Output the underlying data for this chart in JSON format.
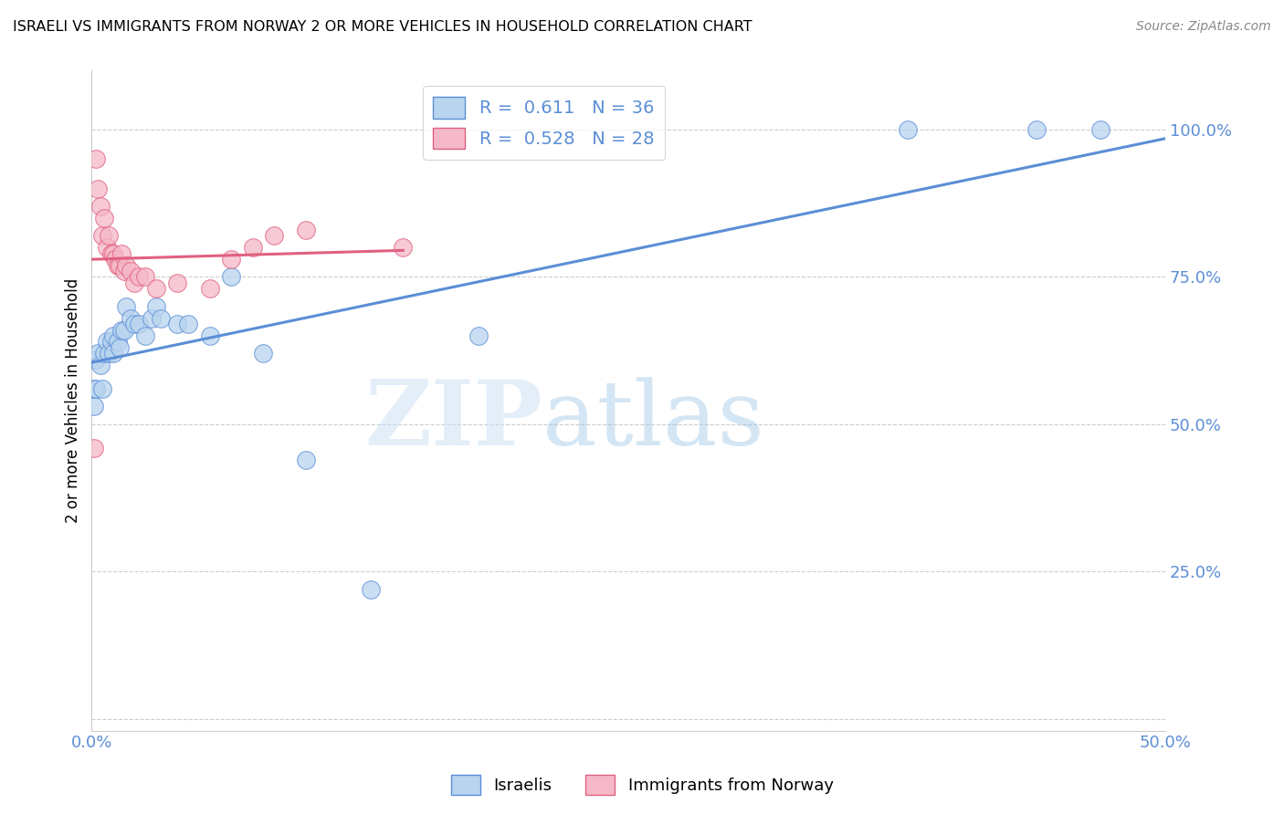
{
  "title": "ISRAELI VS IMMIGRANTS FROM NORWAY 2 OR MORE VEHICLES IN HOUSEHOLD CORRELATION CHART",
  "source": "Source: ZipAtlas.com",
  "ylabel": "2 or more Vehicles in Household",
  "watermark_zip": "ZIP",
  "watermark_atlas": "atlas",
  "xlim": [
    0.0,
    0.5
  ],
  "ylim": [
    -0.02,
    1.1
  ],
  "yticks": [
    0.0,
    0.25,
    0.5,
    0.75,
    1.0
  ],
  "ytick_labels": [
    "",
    "25.0%",
    "50.0%",
    "75.0%",
    "100.0%"
  ],
  "israelis_R": 0.611,
  "israelis_N": 36,
  "norway_R": 0.528,
  "norway_N": 28,
  "israelis_color": "#b8d4ee",
  "norway_color": "#f5b8c8",
  "israelis_line_color": "#5b8ed6",
  "norway_line_color": "#e06080",
  "israelis_x": [
    0.001,
    0.001,
    0.002,
    0.002,
    0.003,
    0.004,
    0.005,
    0.006,
    0.007,
    0.008,
    0.009,
    0.01,
    0.01,
    0.012,
    0.013,
    0.014,
    0.015,
    0.016,
    0.018,
    0.02,
    0.022,
    0.025,
    0.028,
    0.03,
    0.032,
    0.04,
    0.045,
    0.055,
    0.065,
    0.08,
    0.1,
    0.13,
    0.18,
    0.38,
    0.44,
    0.47
  ],
  "israelis_y": [
    0.53,
    0.56,
    0.56,
    0.61,
    0.62,
    0.6,
    0.56,
    0.62,
    0.64,
    0.62,
    0.64,
    0.62,
    0.65,
    0.64,
    0.63,
    0.66,
    0.66,
    0.7,
    0.68,
    0.67,
    0.67,
    0.65,
    0.68,
    0.7,
    0.68,
    0.67,
    0.67,
    0.65,
    0.75,
    0.62,
    0.44,
    0.22,
    0.65,
    1.0,
    1.0,
    1.0
  ],
  "norway_x": [
    0.002,
    0.003,
    0.004,
    0.005,
    0.006,
    0.007,
    0.008,
    0.009,
    0.01,
    0.011,
    0.012,
    0.013,
    0.014,
    0.015,
    0.016,
    0.018,
    0.02,
    0.022,
    0.025,
    0.03,
    0.04,
    0.055,
    0.065,
    0.075,
    0.085,
    0.1,
    0.145,
    0.001
  ],
  "norway_y": [
    0.95,
    0.9,
    0.87,
    0.82,
    0.85,
    0.8,
    0.82,
    0.79,
    0.79,
    0.78,
    0.77,
    0.77,
    0.79,
    0.76,
    0.77,
    0.76,
    0.74,
    0.75,
    0.75,
    0.73,
    0.74,
    0.73,
    0.78,
    0.8,
    0.82,
    0.83,
    0.8,
    0.46
  ]
}
